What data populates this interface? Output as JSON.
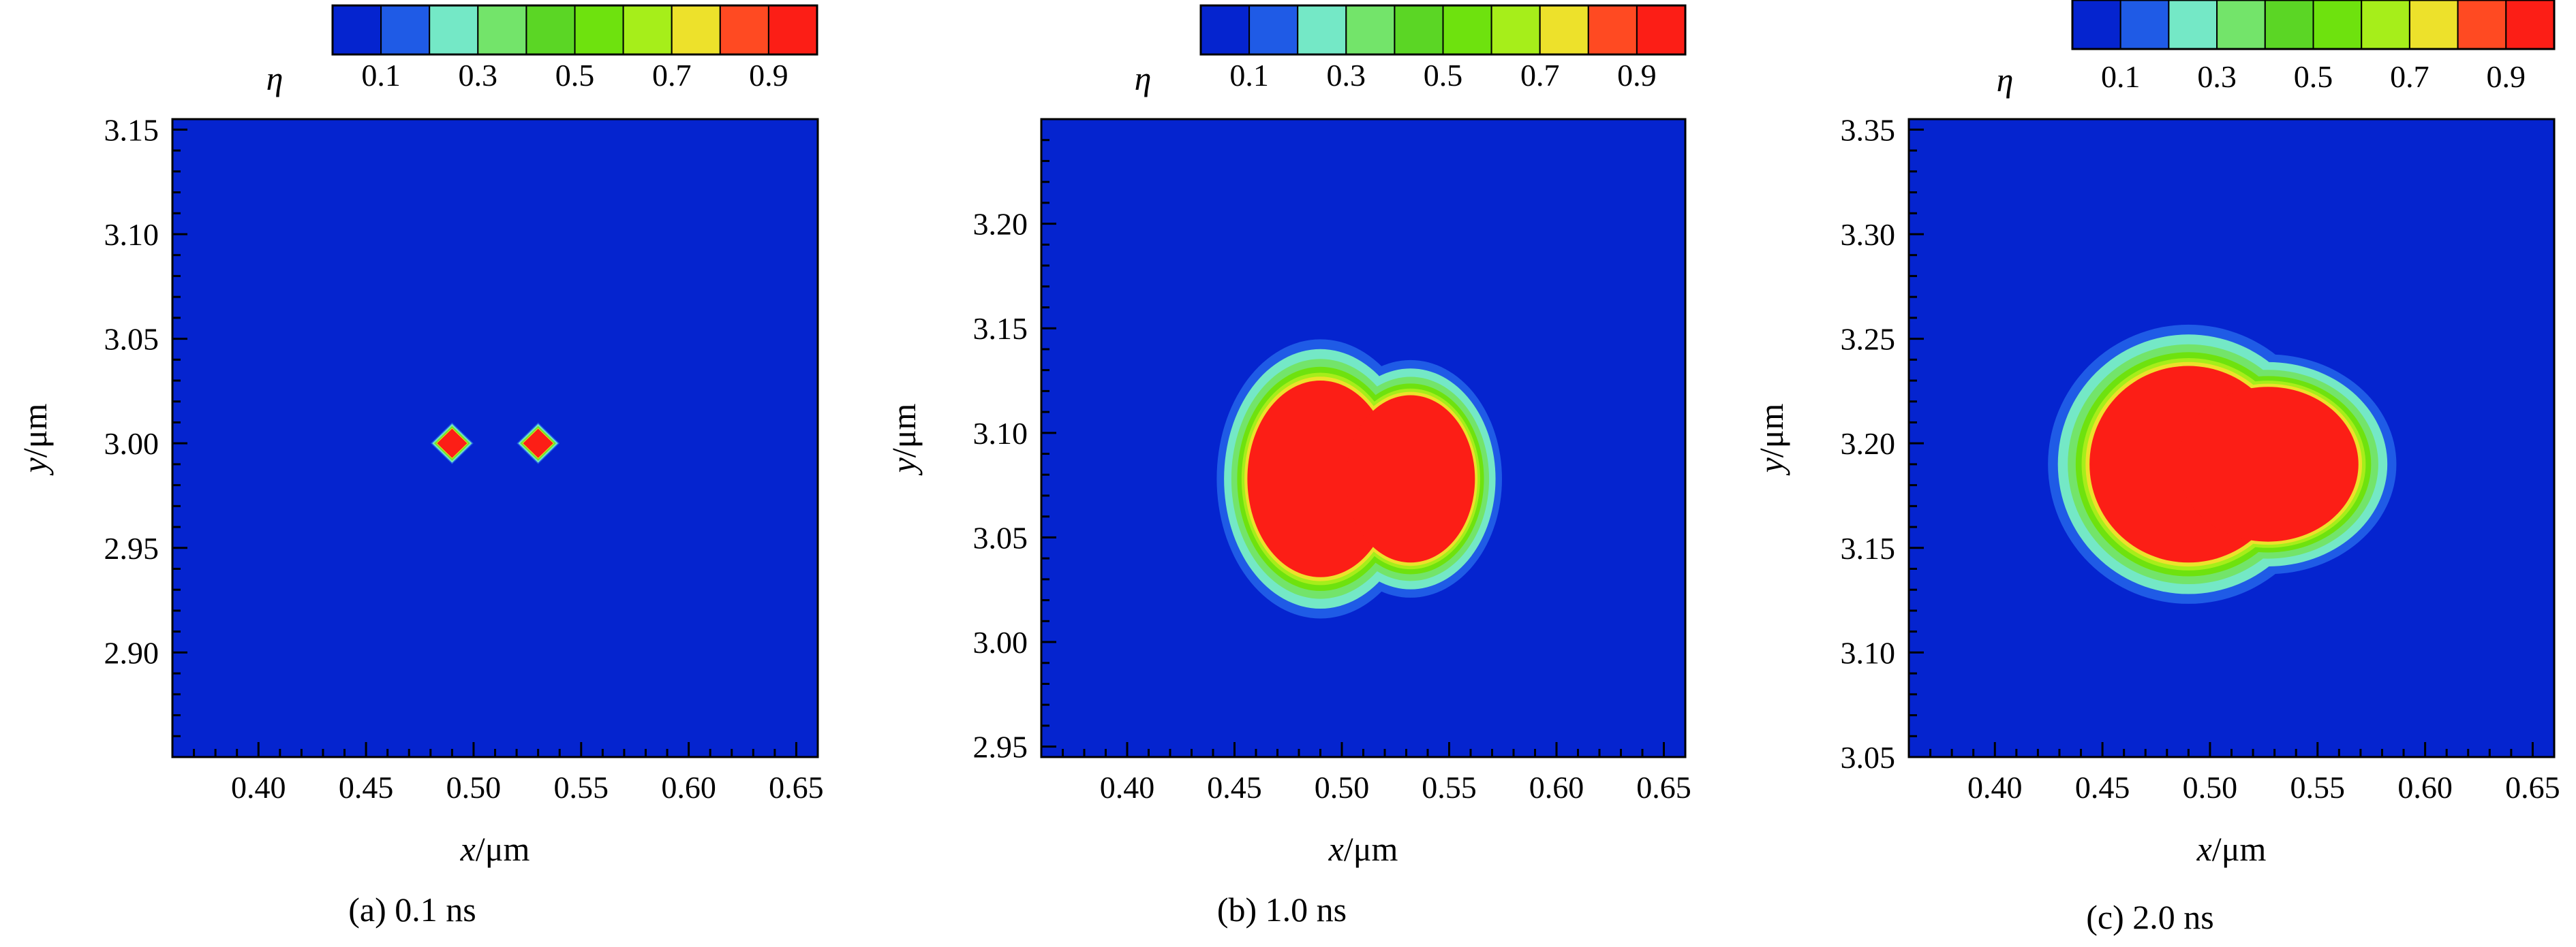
{
  "colormap": [
    "#0524cf",
    "#1f5be6",
    "#74e8c6",
    "#73e46a",
    "#5bd625",
    "#6ee20e",
    "#a6ee1a",
    "#ede12b",
    "#ff4a22",
    "#fc1e16"
  ],
  "chart_data": [
    {
      "type": "heatmap",
      "panel": "a",
      "caption": "(a) 0.1 ns",
      "xlabel_var": "x",
      "xlabel_unit": "/μm",
      "ylabel_var": "y",
      "ylabel_unit": "/μm",
      "xlim": [
        0.36,
        0.66
      ],
      "ylim": [
        2.85,
        3.155
      ],
      "xticks": [
        0.4,
        0.45,
        0.5,
        0.55,
        0.6,
        0.65
      ],
      "yticks": [
        2.9,
        2.95,
        3.0,
        3.05,
        3.1,
        3.15
      ],
      "xtick_labels": [
        "0.40",
        "0.45",
        "0.50",
        "0.55",
        "0.60",
        "0.65"
      ],
      "ytick_labels": [
        "2.90",
        "2.95",
        "3.00",
        "3.05",
        "3.10",
        "3.15"
      ],
      "colorbar": {
        "variable": "η",
        "levels": [
          0.1,
          0.3,
          0.5,
          0.7,
          0.9
        ],
        "labels": [
          "0.1",
          "0.3",
          "0.5",
          "0.7",
          "0.9"
        ]
      },
      "background_eta": 0.0,
      "nuclei": [
        {
          "x": 0.49,
          "y": 3.0,
          "rx": 0.007,
          "ry": 0.007,
          "peak_eta": 1.0,
          "shape": "diamond"
        },
        {
          "x": 0.53,
          "y": 3.0,
          "rx": 0.007,
          "ry": 0.007,
          "peak_eta": 1.0,
          "shape": "diamond"
        }
      ]
    },
    {
      "type": "heatmap",
      "panel": "b",
      "caption": "(b) 1.0 ns",
      "xlabel_var": "x",
      "xlabel_unit": "/μm",
      "ylabel_var": "y",
      "ylabel_unit": "/μm",
      "xlim": [
        0.36,
        0.66
      ],
      "ylim": [
        2.945,
        3.25
      ],
      "xticks": [
        0.4,
        0.45,
        0.5,
        0.55,
        0.6,
        0.65
      ],
      "yticks": [
        2.95,
        3.0,
        3.05,
        3.1,
        3.15,
        3.2
      ],
      "xtick_labels": [
        "0.40",
        "0.45",
        "0.50",
        "0.55",
        "0.60",
        "0.65"
      ],
      "ytick_labels": [
        "2.95",
        "3.00",
        "3.05",
        "3.10",
        "3.15",
        "3.20"
      ],
      "colorbar": {
        "variable": "η",
        "levels": [
          0.1,
          0.3,
          0.5,
          0.7,
          0.9
        ],
        "labels": [
          "0.1",
          "0.3",
          "0.5",
          "0.7",
          "0.9"
        ]
      },
      "background_eta": 0.0,
      "nuclei": [
        {
          "x": 0.49,
          "y": 3.078,
          "rx": 0.034,
          "ry": 0.047,
          "peak_eta": 1.0,
          "shape": "ellipse"
        },
        {
          "x": 0.532,
          "y": 3.078,
          "rx": 0.03,
          "ry": 0.04,
          "peak_eta": 1.0,
          "shape": "ellipse"
        }
      ]
    },
    {
      "type": "heatmap",
      "panel": "c",
      "caption": "(c) 2.0 ns",
      "xlabel_var": "x",
      "xlabel_unit": "/μm",
      "ylabel_var": "y",
      "ylabel_unit": "/μm",
      "xlim": [
        0.36,
        0.66
      ],
      "ylim": [
        3.05,
        3.355
      ],
      "xticks": [
        0.4,
        0.45,
        0.5,
        0.55,
        0.6,
        0.65
      ],
      "yticks": [
        3.05,
        3.1,
        3.15,
        3.2,
        3.25,
        3.3,
        3.35
      ],
      "xtick_labels": [
        "0.40",
        "0.45",
        "0.50",
        "0.55",
        "0.60",
        "0.65"
      ],
      "ytick_labels": [
        "3.05",
        "3.10",
        "3.15",
        "3.20",
        "3.25",
        "3.30",
        "3.35"
      ],
      "colorbar": {
        "variable": "η",
        "levels": [
          0.1,
          0.3,
          0.5,
          0.7,
          0.9
        ],
        "labels": [
          "0.1",
          "0.3",
          "0.5",
          "0.7",
          "0.9"
        ]
      },
      "background_eta": 0.0,
      "nuclei": [
        {
          "x": 0.49,
          "y": 3.19,
          "rx": 0.046,
          "ry": 0.047,
          "peak_eta": 1.0,
          "shape": "ellipse"
        },
        {
          "x": 0.527,
          "y": 3.19,
          "rx": 0.042,
          "ry": 0.037,
          "peak_eta": 1.0,
          "shape": "ellipse"
        }
      ]
    }
  ]
}
